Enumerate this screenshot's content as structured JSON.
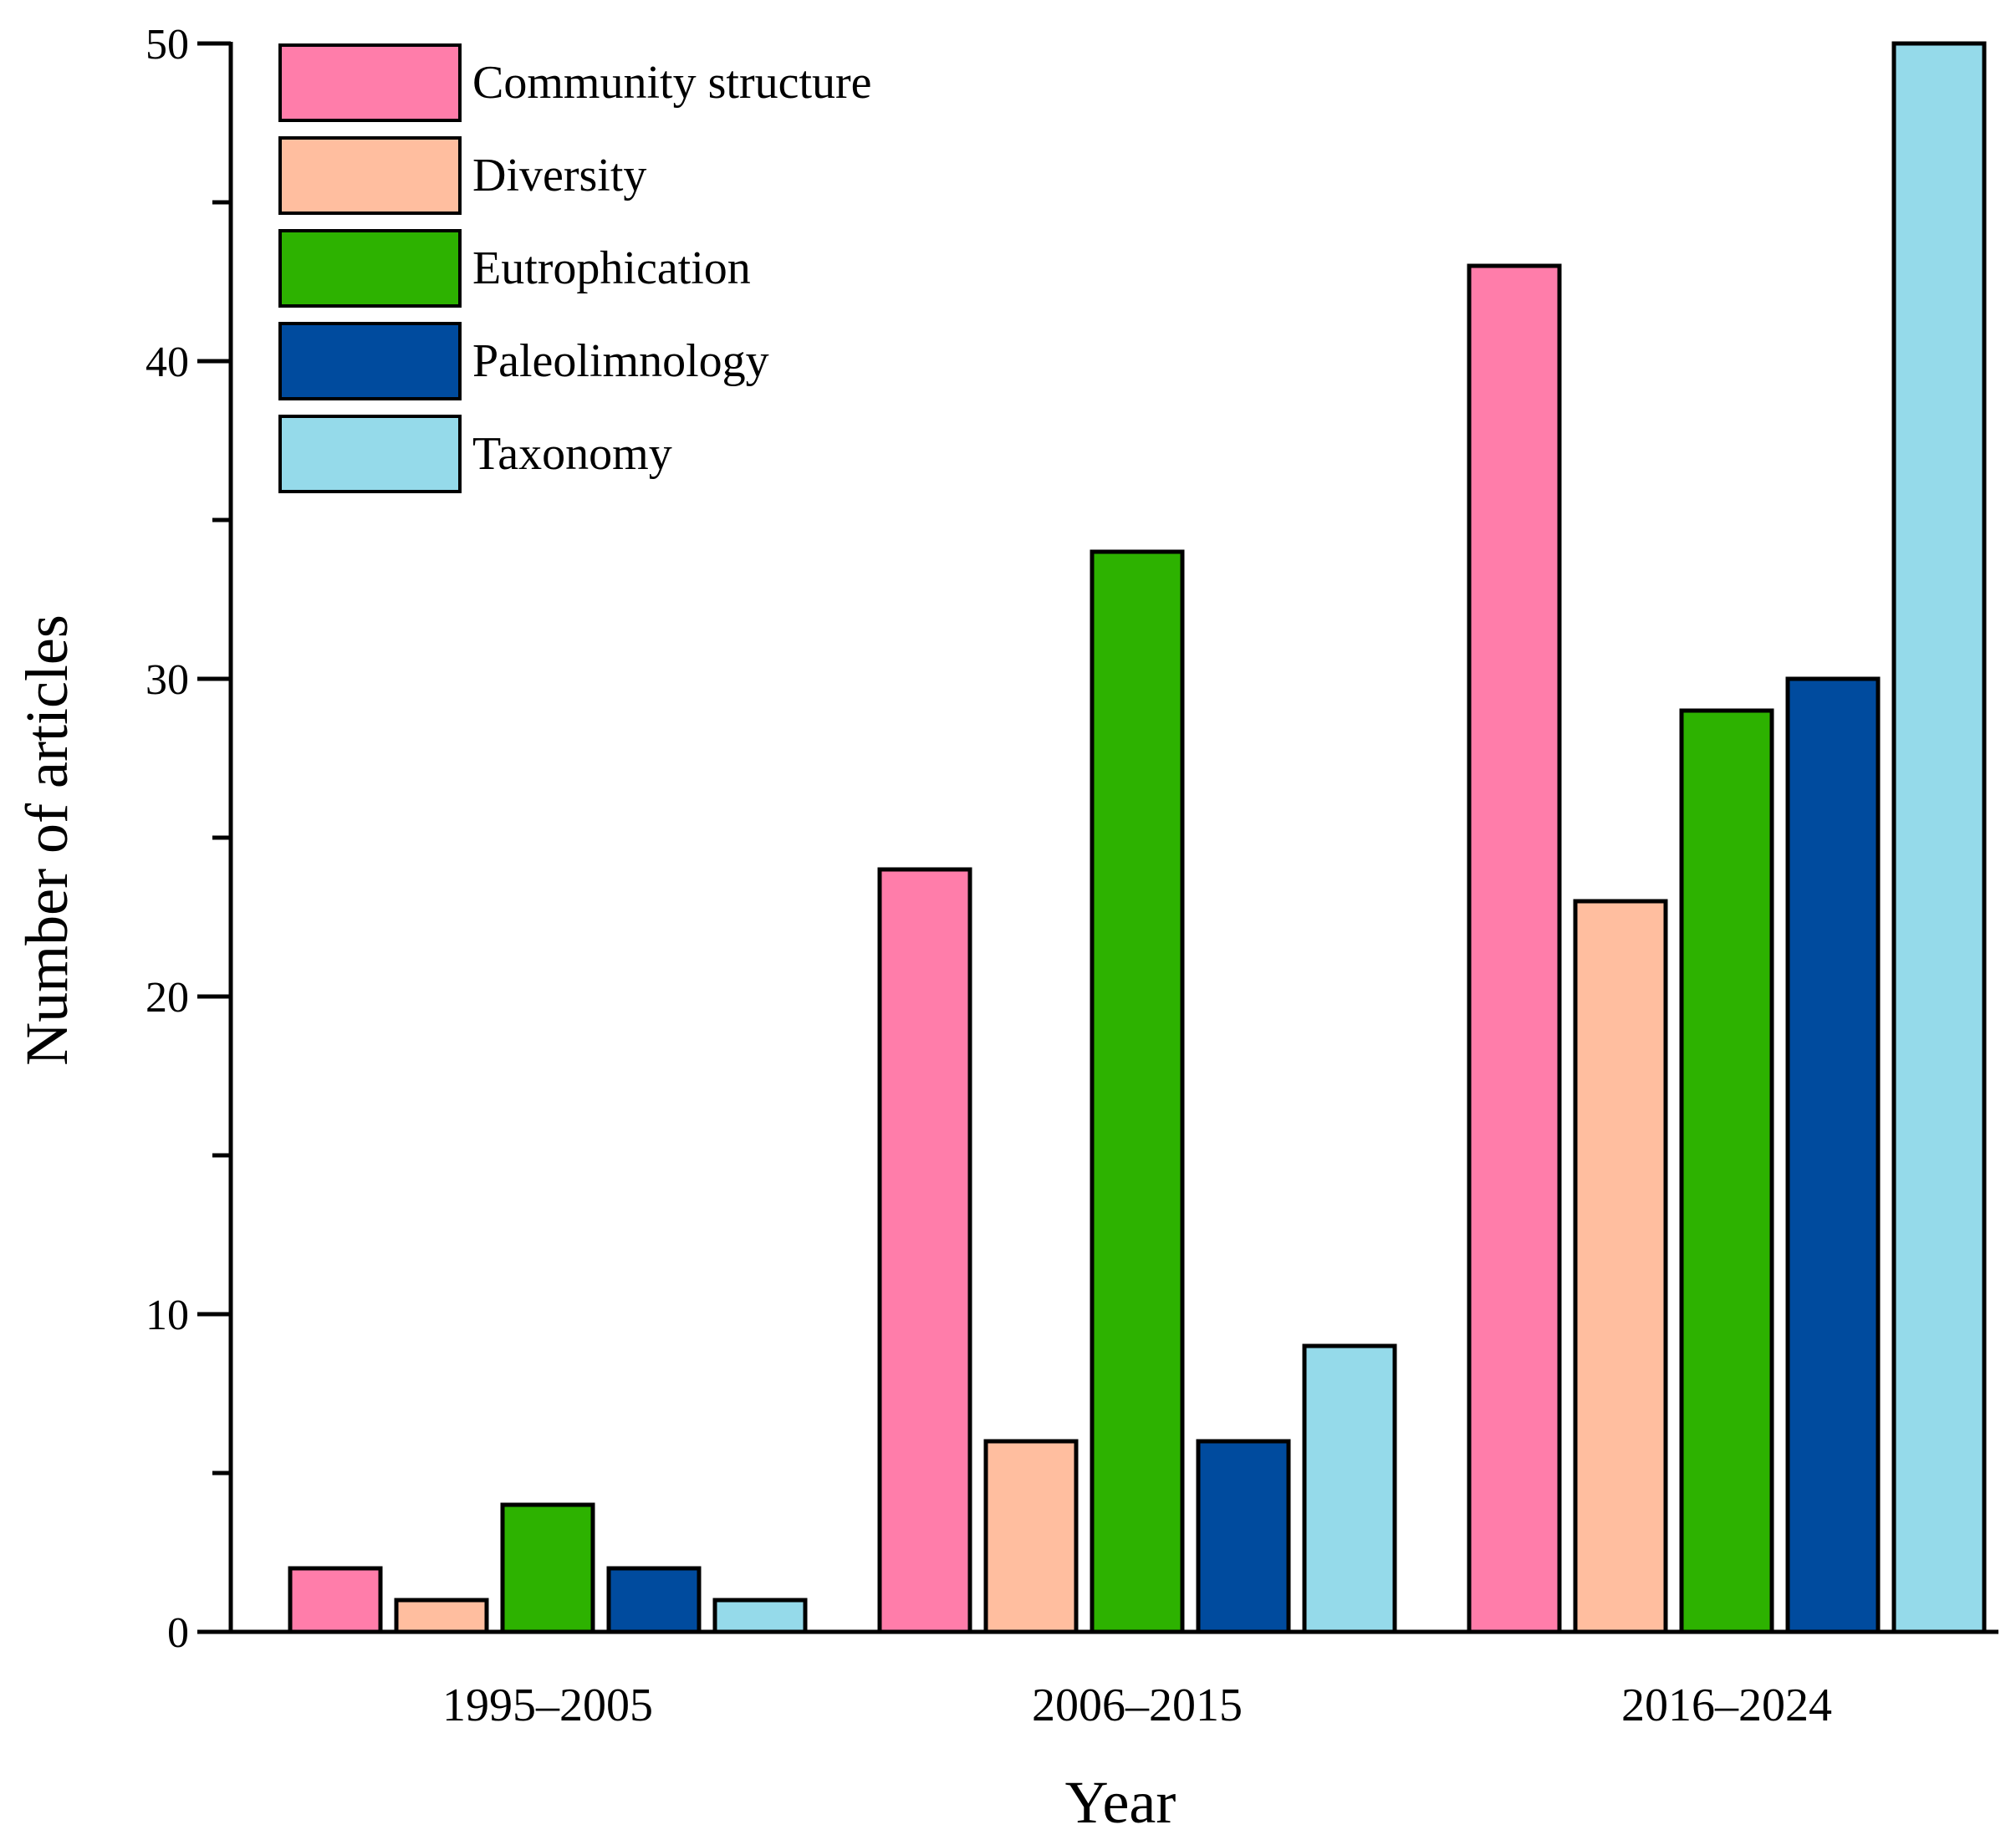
{
  "chart_data": {
    "type": "bar",
    "title": "",
    "xlabel": "Year",
    "ylabel": "Number of articles",
    "categories": [
      "1995–2005",
      "2006–2015",
      "2016–2024"
    ],
    "ylim": [
      0,
      50
    ],
    "yticks": [
      0,
      10,
      20,
      30,
      40,
      50
    ],
    "minor_ticks": [
      5,
      15,
      25,
      35,
      45
    ],
    "grid": false,
    "legend_position": "top-left",
    "series": [
      {
        "name": "Community structure",
        "color": "#FF7DAA",
        "values": [
          2,
          24,
          43
        ]
      },
      {
        "name": "Diversity",
        "color": "#FFBE9F",
        "values": [
          1,
          6,
          23
        ]
      },
      {
        "name": "Eutrophication",
        "color": "#2DB200",
        "values": [
          4,
          34,
          29
        ]
      },
      {
        "name": "Paleolimnology",
        "color": "#004B9E",
        "values": [
          2,
          6,
          30
        ]
      },
      {
        "name": "Taxonomy",
        "color": "#95DAEA",
        "values": [
          1,
          9,
          50
        ]
      }
    ]
  }
}
